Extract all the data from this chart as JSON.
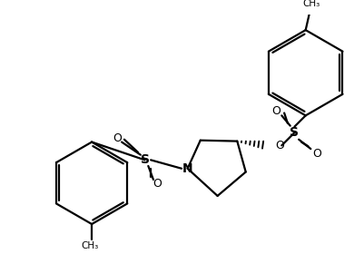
{
  "bg_color": "#ffffff",
  "line_color": "#000000",
  "line_width": 1.6,
  "figsize": [
    4.02,
    2.8
  ],
  "dpi": 100,
  "xlim": [
    0,
    402
  ],
  "ylim": [
    0,
    280
  ]
}
